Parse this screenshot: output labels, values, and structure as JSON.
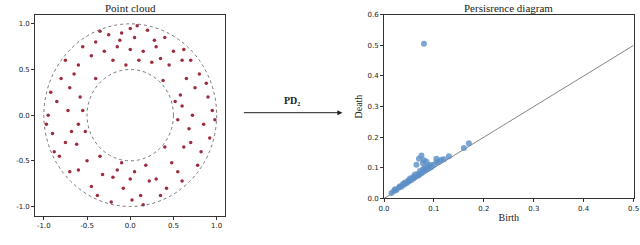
{
  "chart_data": [
    {
      "type": "scatter",
      "title": "Point cloud",
      "x": [
        0.0,
        0.05,
        -0.1,
        0.2,
        -0.25,
        0.3,
        -0.3,
        0.1,
        -0.05,
        0.15,
        -0.15,
        0.4,
        -0.4,
        0.25,
        -0.2,
        0.0,
        0.35,
        -0.45,
        0.5,
        -0.55,
        0.08,
        -0.35,
        0.45,
        -0.12,
        0.28,
        0.02,
        -0.08,
        0.12,
        -0.22,
        0.3,
        -0.32,
        0.05,
        -0.1,
        0.18,
        0.42,
        -0.45,
        0.22,
        -0.2,
        0.55,
        -0.6,
        0.35,
        -0.38,
        0.0,
        0.48,
        -0.5,
        0.15,
        -0.15,
        0.95,
        0.85,
        0.9,
        0.75,
        0.7,
        0.6,
        0.55,
        0.8,
        0.82,
        0.65,
        0.62,
        0.72,
        0.92,
        0.58,
        0.68,
        0.88,
        0.78,
        0.7,
        0.98,
        0.52,
        -0.95,
        -0.85,
        -0.9,
        -0.75,
        -0.7,
        -0.6,
        -0.55,
        -0.8,
        -0.82,
        -0.65,
        -0.62,
        -0.72,
        -0.92,
        -0.58,
        -0.68,
        -0.88,
        -0.75,
        -0.7,
        -0.97,
        -0.52,
        0.62,
        -0.6,
        0.6,
        -0.35,
        0.38,
        -0.4,
        0.4,
        0.6
      ],
      "y": [
        0.95,
        0.85,
        0.9,
        0.93,
        0.88,
        0.75,
        0.7,
        0.6,
        0.55,
        0.7,
        0.75,
        0.85,
        0.8,
        0.58,
        0.6,
        0.72,
        0.62,
        0.65,
        0.7,
        0.75,
        0.98,
        0.92,
        0.55,
        0.82,
        0.82,
        -0.93,
        -0.8,
        -0.88,
        -0.95,
        -0.7,
        -0.65,
        -0.62,
        -0.52,
        -0.55,
        -0.8,
        -0.78,
        -0.72,
        -0.68,
        -0.62,
        -0.6,
        -0.88,
        -0.88,
        -0.7,
        -0.52,
        -0.5,
        -0.98,
        -0.6,
        0.05,
        -0.1,
        0.2,
        0.3,
        -0.3,
        0.1,
        -0.05,
        0.45,
        -0.4,
        0.4,
        -0.35,
        0.0,
        -0.25,
        0.22,
        -0.15,
        0.35,
        -0.55,
        0.6,
        -0.05,
        0.15,
        0.0,
        0.15,
        -0.2,
        -0.3,
        0.3,
        -0.1,
        0.05,
        0.4,
        -0.45,
        0.45,
        -0.32,
        0.05,
        0.25,
        0.2,
        -0.18,
        -0.4,
        0.6,
        -0.62,
        -0.1,
        -0.18,
        0.72,
        0.55,
        -0.72,
        -0.45,
        0.38,
        0.4,
        -0.35,
        0.6
      ],
      "color": "#9b2d3f",
      "marker": "circle",
      "circles": [
        1.0,
        0.5
      ],
      "xlim": [
        -1.1,
        1.1
      ],
      "ylim": [
        -1.1,
        1.1
      ],
      "xticks": [
        {
          "value": -1,
          "label": "-1.0"
        },
        -0.5,
        {
          "value": 0,
          "label": "0.0"
        },
        0.5,
        {
          "value": 1,
          "label": "1.0"
        }
      ],
      "yticks": [
        {
          "value": -1,
          "label": "-1.0"
        },
        -0.5,
        {
          "value": 0,
          "label": "0.0"
        },
        0.5,
        {
          "value": 1,
          "label": "1.0"
        }
      ],
      "grid": false
    },
    {
      "type": "scatter",
      "title": "Persisrence diagram",
      "x_label": "Birth",
      "y_label": "Death",
      "x": [
        0.015,
        0.02,
        0.022,
        0.025,
        0.03,
        0.032,
        0.035,
        0.038,
        0.04,
        0.042,
        0.045,
        0.048,
        0.05,
        0.052,
        0.055,
        0.058,
        0.06,
        0.062,
        0.065,
        0.068,
        0.07,
        0.072,
        0.075,
        0.078,
        0.08,
        0.082,
        0.085,
        0.088,
        0.09,
        0.092,
        0.095,
        0.1,
        0.105,
        0.11,
        0.115,
        0.12,
        0.13,
        0.07,
        0.075,
        0.08,
        0.078,
        0.085,
        0.065,
        0.105,
        0.16,
        0.17,
        0.08
      ],
      "y": [
        0.018,
        0.024,
        0.03,
        0.028,
        0.036,
        0.04,
        0.038,
        0.047,
        0.045,
        0.052,
        0.05,
        0.058,
        0.055,
        0.065,
        0.06,
        0.07,
        0.066,
        0.078,
        0.072,
        0.08,
        0.076,
        0.09,
        0.082,
        0.095,
        0.088,
        0.1,
        0.094,
        0.105,
        0.098,
        0.11,
        0.103,
        0.11,
        0.118,
        0.12,
        0.126,
        0.128,
        0.138,
        0.13,
        0.14,
        0.125,
        0.115,
        0.12,
        0.11,
        0.13,
        0.165,
        0.18,
        0.505
      ],
      "color": "#5b8fc7",
      "marker": "circle",
      "xlim": [
        0,
        0.5
      ],
      "ylim": [
        0,
        0.6
      ],
      "xticks": [
        {
          "value": 0,
          "label": "0.0"
        },
        0.1,
        0.2,
        0.3,
        0.4,
        0.5
      ],
      "yticks": [
        {
          "value": 0,
          "label": "0.0"
        },
        0.1,
        0.2,
        0.3,
        0.4,
        0.5,
        0.6
      ],
      "grid": false
    }
  ],
  "arrow": {
    "label": "PD₂"
  }
}
